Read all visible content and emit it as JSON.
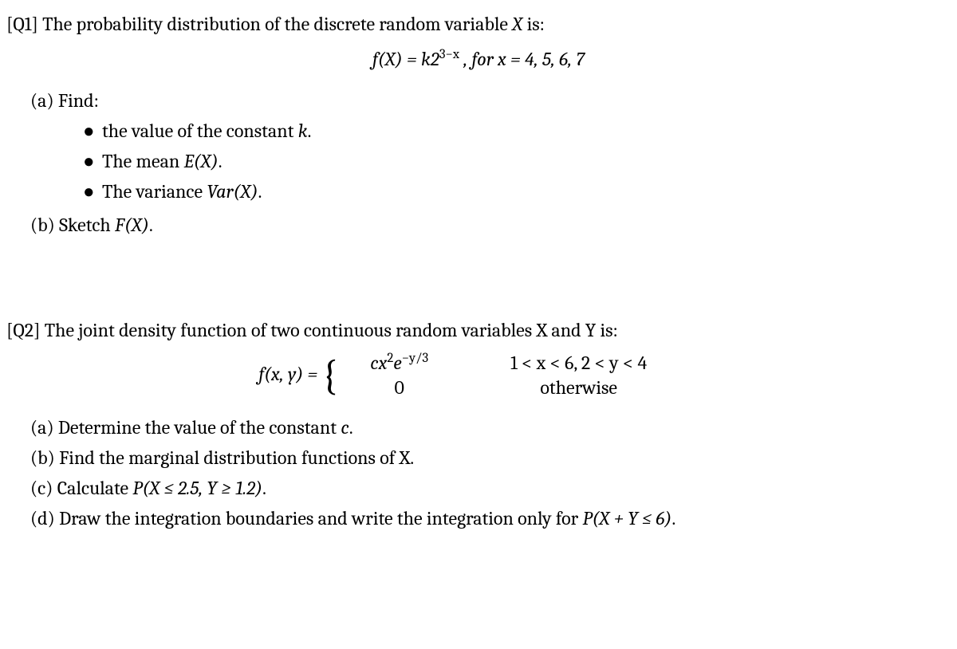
{
  "q1": {
    "header": "[Q1] The probability distribution of the discrete random variable ",
    "header_var": "X",
    "header_end": " is:",
    "formula_lhs": "f(X) = k2",
    "formula_exp": "3−x",
    "formula_rhs": "  , for  x = 4, 5, 6, 7",
    "a_label": "(a) Find:",
    "bullet1_pre": "the value of the constant ",
    "bullet1_var": "k",
    "bullet1_post": ".",
    "bullet2_pre": "The mean ",
    "bullet2_var": "E(X)",
    "bullet2_post": ".",
    "bullet3_pre": "The variance ",
    "bullet3_var": "Var(X)",
    "bullet3_post": ".",
    "b_pre": "(b) Sketch ",
    "b_var": "F(X)",
    "b_post": "."
  },
  "q2": {
    "header": "[Q2] The joint density function of two continuous random variables X and Y is:",
    "formula_lhs": "f(x, y) = ",
    "case1_val_pre": "cx",
    "case1_val_exp1": "2",
    "case1_val_mid": "e",
    "case1_val_exp2": "−y/3",
    "case1_cond": "1 < x < 6,  2 < y < 4",
    "case2_val": "0",
    "case2_cond": "otherwise",
    "a": "(a) Determine the value of the constant ",
    "a_var": "c",
    "a_post": ".",
    "b": "(b) Find the marginal distribution functions of X.",
    "c": "(c) Calculate ",
    "c_var": "P(X ≤ 2.5, Y ≥ 1.2)",
    "c_post": ".",
    "d": "(d) Draw the integration boundaries and write the integration only for ",
    "d_var": "P(X + Y ≤ 6)",
    "d_post": "."
  }
}
